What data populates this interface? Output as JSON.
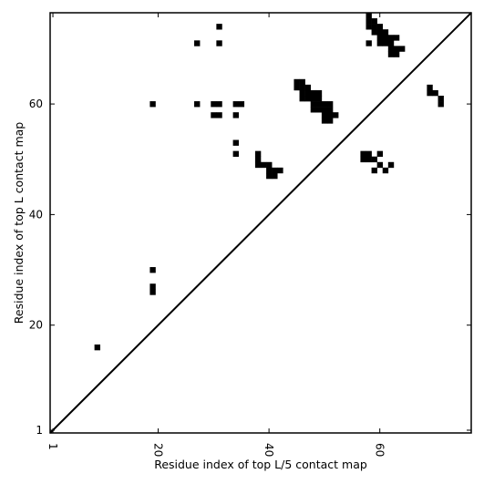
{
  "chart_data": {
    "type": "heatmap",
    "title": "",
    "xlabel": "Residue index of top L/5 contact map",
    "ylabel": "Residue index of top L contact map",
    "xlim": [
      0.5,
      76.5
    ],
    "ylim": [
      0.5,
      76.5
    ],
    "x_ticks": [
      1,
      20,
      40,
      60
    ],
    "y_ticks": [
      1,
      20,
      40,
      60
    ],
    "x_tick_rotation": -90,
    "diagonal_line": true,
    "cell_color": "#000000",
    "background_color": "#ffffff",
    "points": [
      [
        9,
        16
      ],
      [
        19,
        26
      ],
      [
        19,
        27
      ],
      [
        19,
        30
      ],
      [
        19,
        60
      ],
      [
        27,
        60
      ],
      [
        27,
        71
      ],
      [
        30,
        58
      ],
      [
        30,
        60
      ],
      [
        31,
        58
      ],
      [
        31,
        60
      ],
      [
        31,
        71
      ],
      [
        31,
        74
      ],
      [
        34,
        51
      ],
      [
        34,
        53
      ],
      [
        34,
        58
      ],
      [
        34,
        60
      ],
      [
        35,
        60
      ],
      [
        38,
        49
      ],
      [
        38,
        50
      ],
      [
        38,
        51
      ],
      [
        39,
        49
      ],
      [
        40,
        47
      ],
      [
        40,
        48
      ],
      [
        40,
        49
      ],
      [
        41,
        47
      ],
      [
        41,
        48
      ],
      [
        42,
        48
      ],
      [
        45,
        63
      ],
      [
        45,
        64
      ],
      [
        46,
        61
      ],
      [
        46,
        62
      ],
      [
        46,
        63
      ],
      [
        46,
        64
      ],
      [
        47,
        61
      ],
      [
        47,
        62
      ],
      [
        47,
        63
      ],
      [
        48,
        59
      ],
      [
        48,
        60
      ],
      [
        48,
        61
      ],
      [
        48,
        62
      ],
      [
        49,
        59
      ],
      [
        49,
        60
      ],
      [
        49,
        61
      ],
      [
        49,
        62
      ],
      [
        50,
        57
      ],
      [
        50,
        58
      ],
      [
        50,
        59
      ],
      [
        50,
        60
      ],
      [
        51,
        57
      ],
      [
        51,
        58
      ],
      [
        51,
        59
      ],
      [
        51,
        60
      ],
      [
        52,
        58
      ],
      [
        57,
        50
      ],
      [
        57,
        51
      ],
      [
        58,
        50
      ],
      [
        58,
        51
      ],
      [
        58,
        71
      ],
      [
        58,
        74
      ],
      [
        58,
        75
      ],
      [
        58,
        76
      ],
      [
        59,
        48
      ],
      [
        59,
        50
      ],
      [
        59,
        73
      ],
      [
        59,
        74
      ],
      [
        59,
        75
      ],
      [
        60,
        49
      ],
      [
        60,
        51
      ],
      [
        60,
        71
      ],
      [
        60,
        72
      ],
      [
        60,
        73
      ],
      [
        60,
        74
      ],
      [
        61,
        48
      ],
      [
        61,
        71
      ],
      [
        61,
        72
      ],
      [
        61,
        73
      ],
      [
        62,
        49
      ],
      [
        62,
        69
      ],
      [
        62,
        70
      ],
      [
        62,
        71
      ],
      [
        62,
        72
      ],
      [
        63,
        69
      ],
      [
        63,
        70
      ],
      [
        63,
        72
      ],
      [
        64,
        70
      ],
      [
        69,
        62
      ],
      [
        69,
        63
      ],
      [
        70,
        62
      ],
      [
        71,
        60
      ],
      [
        71,
        61
      ]
    ]
  }
}
